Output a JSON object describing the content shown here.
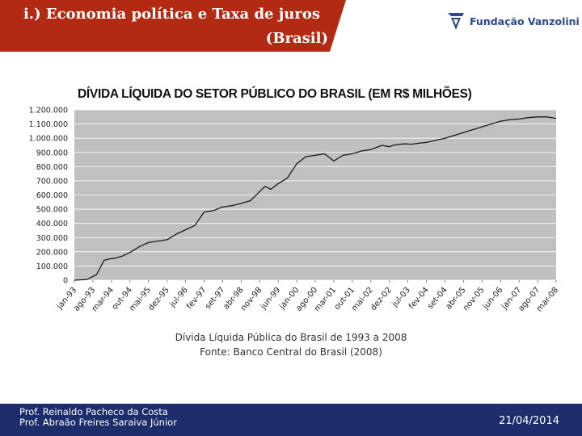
{
  "slide": {
    "title_line1": "i.) Economia política e Taxa de juros",
    "title_line2": "(Brasil)",
    "logo_text": "Fundação Vanzolini",
    "caption_line1": "Dívida Líquida Pública do Brasil de 1993 a 2008",
    "caption_line2": "Fonte: Banco Central do Brasil (2008)",
    "footer_author1": "Prof. Reinaldo Pacheco da Costa",
    "footer_author2": "Prof. Abraão Freires Saraiva Júnior",
    "footer_date": "21/04/2014"
  },
  "colors": {
    "title_bg": "#b32a12",
    "footer_bg": "#1d2d6b",
    "plot_bg": "#c0c0c0",
    "line": "#1a1a1a",
    "logo": "#2c4a8c"
  },
  "chart_data": {
    "type": "line",
    "title": "DÍVIDA LÍQUIDA DO SETOR PÚBLICO DO BRASIL (EM R$ MILHÕES)",
    "xlabel": "",
    "ylabel": "",
    "ylim": [
      0,
      1200000
    ],
    "grid": true,
    "y_ticks": [
      0,
      100000,
      200000,
      300000,
      400000,
      500000,
      600000,
      700000,
      800000,
      900000,
      1000000,
      1100000,
      1200000
    ],
    "y_tick_labels": [
      "0",
      "100.000",
      "200.000",
      "300.000",
      "400.000",
      "500.000",
      "600.000",
      "700.000",
      "800.000",
      "900.000",
      "1.000.000",
      "1.100.000",
      "1.200.000"
    ],
    "x_tick_labels": [
      "jan-93",
      "ago-93",
      "mar-94",
      "out-94",
      "mai-95",
      "dez-95",
      "jul-96",
      "fev-97",
      "set-97",
      "abr-98",
      "nov-98",
      "jun-99",
      "jan-00",
      "ago-00",
      "mar-01",
      "out-01",
      "mai-02",
      "dez-02",
      "jul-03",
      "fev-04",
      "set-04",
      "abr-05",
      "nov-05",
      "jun-06",
      "jan-07",
      "ago-07",
      "mar-08"
    ],
    "series": [
      {
        "name": "Dívida Líquida do Setor Público",
        "x": [
          0,
          0.7,
          1.2,
          1.6,
          1.9,
          2.2,
          2.6,
          3.0,
          3.5,
          4.0,
          4.5,
          5.0,
          5.5,
          6.0,
          6.5,
          7.0,
          7.5,
          8.0,
          8.5,
          9.0,
          9.5,
          9.9,
          10.2,
          10.3,
          10.6,
          11.0,
          11.5,
          12.0,
          12.5,
          13.0,
          13.5,
          14.0,
          14.5,
          15.0,
          15.5,
          16.0,
          16.3,
          16.6,
          16.8,
          17.0,
          17.2,
          17.4,
          17.8,
          18.2,
          18.6,
          19.0,
          19.5,
          20.0,
          20.5,
          21.0,
          21.5,
          22.0,
          22.5,
          23.0,
          23.5,
          24.0,
          24.5,
          25.0,
          25.5,
          26.0
        ],
        "values": [
          0,
          5000,
          40000,
          140000,
          150000,
          155000,
          170000,
          195000,
          235000,
          265000,
          275000,
          285000,
          325000,
          355000,
          385000,
          480000,
          490000,
          515000,
          525000,
          540000,
          560000,
          610000,
          650000,
          660000,
          640000,
          680000,
          720000,
          820000,
          870000,
          880000,
          890000,
          840000,
          880000,
          890000,
          910000,
          920000,
          935000,
          950000,
          945000,
          940000,
          950000,
          955000,
          960000,
          958000,
          965000,
          970000,
          985000,
          1000000,
          1020000,
          1040000,
          1060000,
          1080000,
          1100000,
          1120000,
          1130000,
          1135000,
          1145000,
          1150000,
          1150000,
          1140000
        ]
      }
    ]
  }
}
